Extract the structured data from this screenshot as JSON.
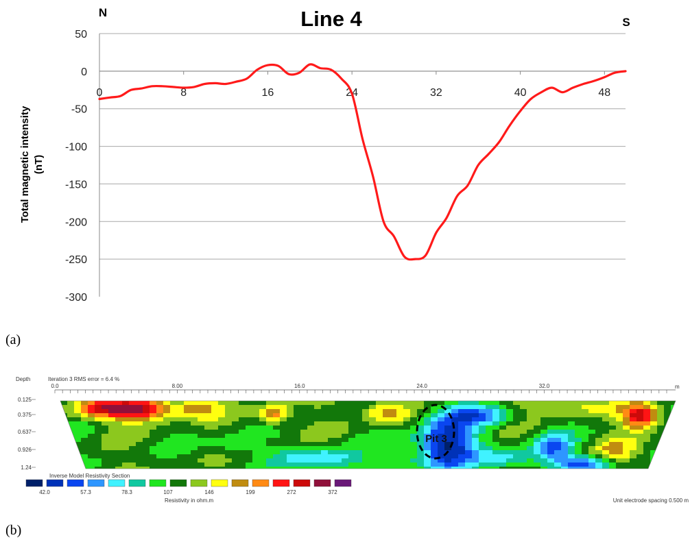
{
  "panel_a_label": "(a)",
  "panel_b_label": "(b)",
  "chart_data": [
    {
      "type": "line",
      "title": "Line 4",
      "left_label": "N",
      "right_label": "S",
      "ylabel": "Total magnetic intensity\n(nT)",
      "xlabel": "",
      "xlim": [
        0,
        50
      ],
      "ylim": [
        -300,
        50
      ],
      "xticks": [
        "0",
        "8",
        "16",
        "24",
        "32",
        "40",
        "48"
      ],
      "yticks": [
        "50",
        "0",
        "-50",
        "-100",
        "-150",
        "-200",
        "-250",
        "-300"
      ],
      "grid": "horizontal",
      "series_color": "#ff1a1a",
      "series": [
        {
          "x": [
            0,
            1,
            2,
            3,
            4,
            5,
            6,
            7,
            8,
            9,
            10,
            11,
            12,
            13,
            14,
            15,
            16,
            17,
            18,
            19,
            20,
            21,
            22,
            23,
            24,
            25,
            26,
            27,
            28,
            29,
            30,
            31,
            32,
            33,
            34,
            35,
            36,
            37,
            38,
            39,
            40,
            41,
            42,
            43,
            44,
            45,
            46,
            47,
            48,
            49,
            50
          ],
          "y": [
            -37,
            -35,
            -33,
            -25,
            -23,
            -20,
            -20,
            -21,
            -22,
            -21,
            -17,
            -16,
            -17,
            -14,
            -10,
            2,
            8,
            7,
            -4,
            -2,
            9,
            4,
            2,
            -10,
            -30,
            -90,
            -140,
            -200,
            -220,
            -247,
            -250,
            -245,
            -215,
            -195,
            -166,
            -152,
            -125,
            -110,
            -94,
            -72,
            -53,
            -37,
            -28,
            -22,
            -28,
            -22,
            -17,
            -13,
            -8,
            -2,
            0
          ]
        }
      ]
    },
    {
      "type": "heatmap",
      "title": "Inverse Model Resistivity Section",
      "header_text": "Iteration 3 RMS error = 6.4 %",
      "depth_label": "Depth",
      "distance_unit": "m",
      "xticks": [
        "0.0",
        "8.00",
        "16.0",
        "24.0",
        "32.0"
      ],
      "depth_ticks": [
        "0.125",
        "0.375",
        "0.637",
        "0.926",
        "1.24"
      ],
      "colorbar_values": [
        "42.0",
        "57.3",
        "78.3",
        "107",
        "146",
        "199",
        "272",
        "372"
      ],
      "colorbar_colors": [
        "#00206a",
        "#0032b8",
        "#0a46f0",
        "#2e96ff",
        "#40f2ff",
        "#10c8a0",
        "#20e620",
        "#12780a",
        "#8cc81e",
        "#ffff10",
        "#c08c10",
        "#ff8a14",
        "#ff1414",
        "#cc0a0a",
        "#90103a",
        "#6a1878"
      ],
      "colorbar_label": "Resistivity in ohm.m",
      "footer_text": "Unit electrode spacing 0.500 m",
      "annotation": "Pit 3"
    }
  ]
}
